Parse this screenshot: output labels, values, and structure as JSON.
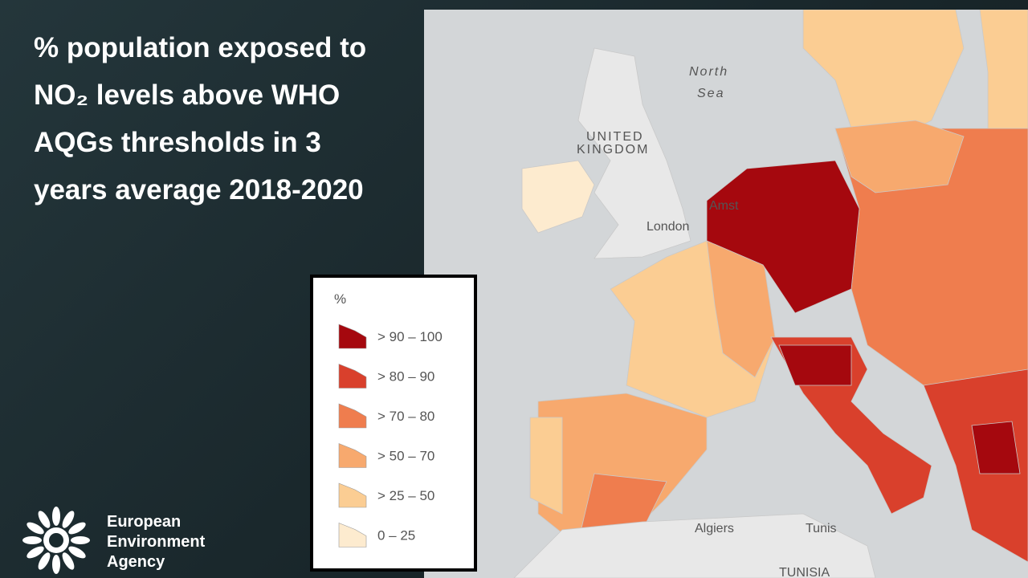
{
  "title": "% population exposed to NO₂ levels above WHO AQGs thresholds in 3 years average 2018-2020",
  "legend": {
    "title": "%",
    "items": [
      {
        "label": "> 90 – 100",
        "color": "#a5080e"
      },
      {
        "label": "> 80 – 90",
        "color": "#d9402c"
      },
      {
        "label": "> 70 – 80",
        "color": "#ef7d4e"
      },
      {
        "label": "> 50 – 70",
        "color": "#f7a96e"
      },
      {
        "label": "> 25 – 50",
        "color": "#fbcd93"
      },
      {
        "label": "0 – 25",
        "color": "#fdebcf"
      }
    ]
  },
  "map_labels": [
    "North",
    "Sea",
    "UNITED",
    "KINGDOM",
    "London",
    "Amst",
    "Algiers",
    "Tunis",
    "TUNISIA"
  ],
  "logo": {
    "lines": [
      "European",
      "Environment",
      "Agency"
    ]
  }
}
